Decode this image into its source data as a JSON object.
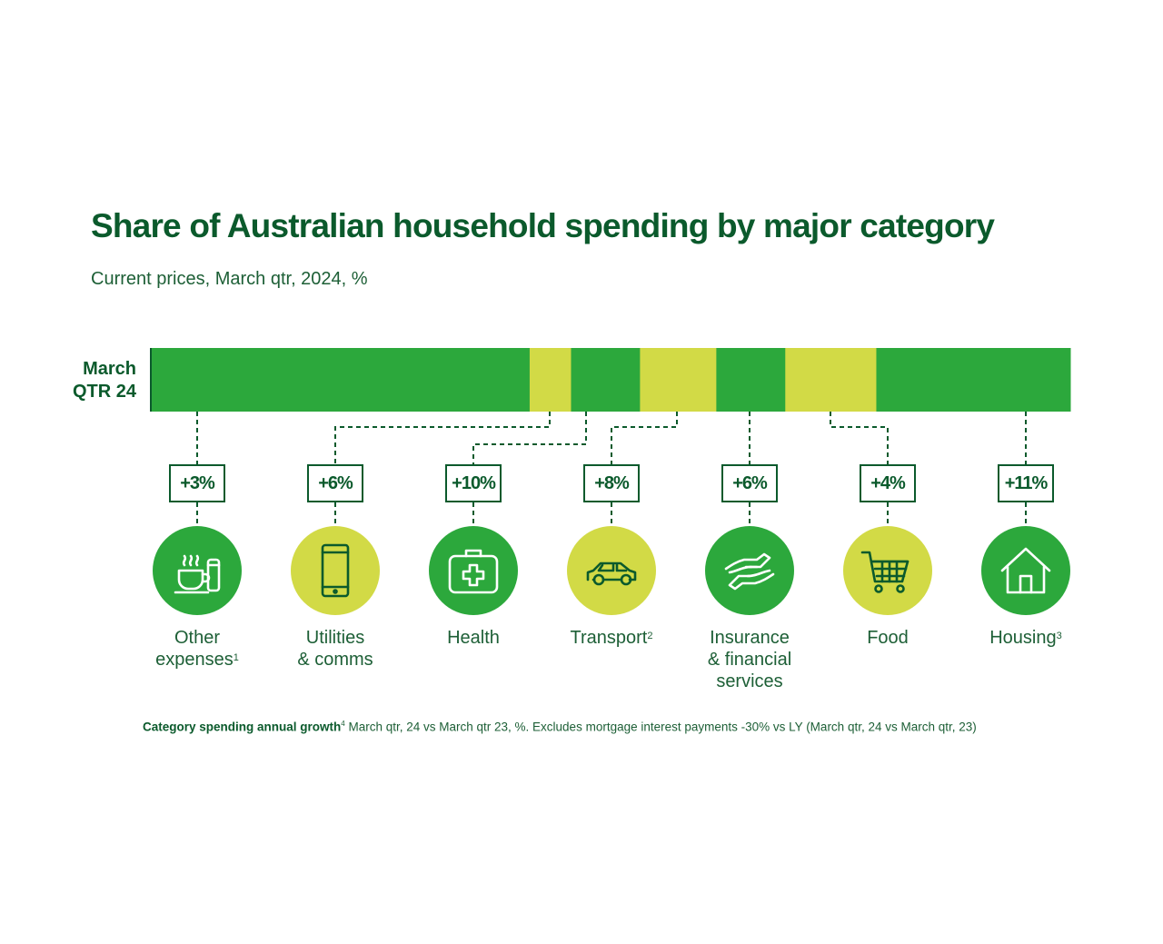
{
  "title": "Share of Australian household spending by major category",
  "subtitle": "Current prices, March qtr, 2024, %",
  "row_label": [
    "March",
    "QTR 24"
  ],
  "colors": {
    "dark_green": "#2ca83c",
    "light_green": "#d2da46",
    "text": "#0b5a2c"
  },
  "chart_data": {
    "type": "bar",
    "stacked": true,
    "orientation": "horizontal",
    "categories": [
      "March QTR 24"
    ],
    "series": [
      {
        "name": "Other expenses",
        "value": 41.2,
        "growth": "+3%",
        "color": "dark"
      },
      {
        "name": "Utilities & comms",
        "value": 4.5,
        "growth": "+6%",
        "color": "light"
      },
      {
        "name": "Health",
        "value": 7.5,
        "growth": "+10%",
        "color": "dark"
      },
      {
        "name": "Transport",
        "value": 8.3,
        "growth": "+8%",
        "color": "light"
      },
      {
        "name": "Insurance & financial services",
        "value": 7.5,
        "growth": "+6%",
        "color": "dark"
      },
      {
        "name": "Food",
        "value": 9.9,
        "growth": "+4%",
        "color": "light"
      },
      {
        "name": "Housing",
        "value": 21.1,
        "growth": "+11%",
        "color": "dark"
      }
    ],
    "xlim": [
      0,
      100
    ]
  },
  "categories": [
    {
      "label_lines": [
        "Other",
        "expenses"
      ],
      "sup": "1",
      "growth": "+3%",
      "icon": "coffee-cup-icon",
      "circle": "dark"
    },
    {
      "label_lines": [
        "Utilities",
        "& comms"
      ],
      "sup": "",
      "growth": "+6%",
      "icon": "smartphone-icon",
      "circle": "light"
    },
    {
      "label_lines": [
        "Health"
      ],
      "sup": "",
      "growth": "+10%",
      "icon": "first-aid-kit-icon",
      "circle": "dark"
    },
    {
      "label_lines": [
        "Transport"
      ],
      "sup": "2",
      "growth": "+8%",
      "icon": "car-icon",
      "circle": "light"
    },
    {
      "label_lines": [
        "Insurance",
        "& financial",
        "services"
      ],
      "sup": "",
      "growth": "+6%",
      "icon": "hands-icon",
      "circle": "dark"
    },
    {
      "label_lines": [
        "Food"
      ],
      "sup": "",
      "growth": "+4%",
      "icon": "shopping-cart-icon",
      "circle": "light"
    },
    {
      "label_lines": [
        "Housing"
      ],
      "sup": "3",
      "growth": "+11%",
      "icon": "house-icon",
      "circle": "dark"
    }
  ],
  "footnote": {
    "bold": "Category spending annual growth",
    "sup": "4",
    "text": " March qtr, 24 vs March qtr 23, %. Excludes mortgage interest payments -30% vs LY (March qtr, 24 vs March qtr, 23)"
  }
}
